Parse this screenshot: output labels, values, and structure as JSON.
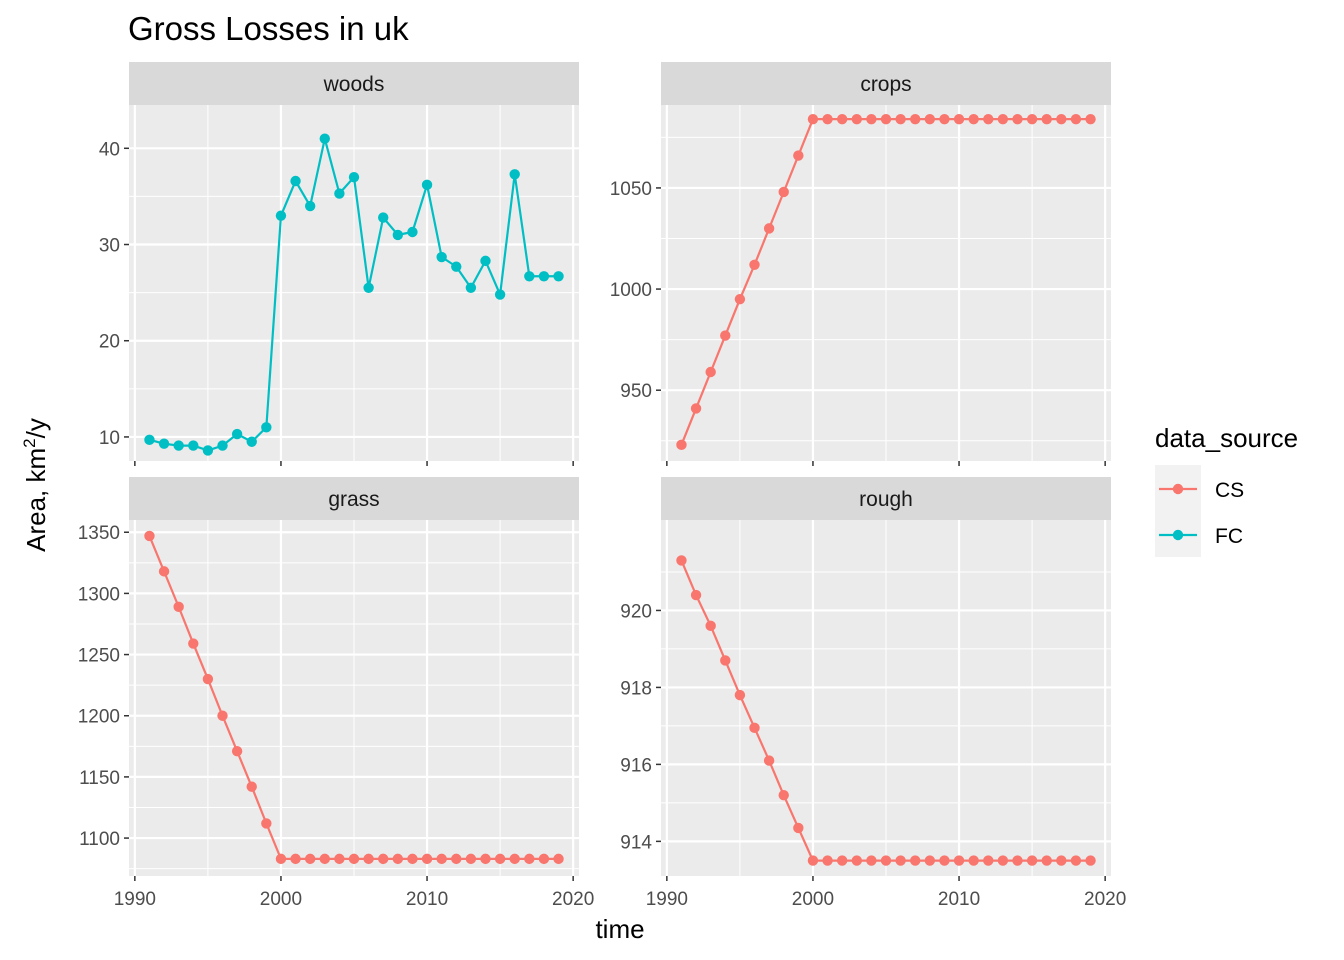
{
  "chart_data": {
    "type": "line",
    "title": "Gross Losses in uk",
    "xlabel": "time",
    "ylabel_prefix": "Area,  km",
    "ylabel_superscript": "2",
    "ylabel_suffix": "/y",
    "x": [
      1991,
      1992,
      1993,
      1994,
      1995,
      1996,
      1997,
      1998,
      1999,
      2000,
      2001,
      2002,
      2003,
      2004,
      2005,
      2006,
      2007,
      2008,
      2009,
      2010,
      2011,
      2012,
      2013,
      2014,
      2015,
      2016,
      2017,
      2018,
      2019
    ],
    "x_ticks": [
      1990,
      2000,
      2010,
      2020
    ],
    "legend": {
      "title": "data_source",
      "position": "right",
      "entries": [
        {
          "name": "CS",
          "color": "#F8766D"
        },
        {
          "name": "FC",
          "color": "#00BFC4"
        }
      ]
    },
    "facets": [
      {
        "label": "woods",
        "series": "FC",
        "ylim": [
          7.5,
          44.5
        ],
        "yticks": [
          10,
          20,
          30,
          40
        ],
        "values": [
          9.7,
          9.3,
          9.1,
          9.1,
          8.6,
          9.1,
          10.3,
          9.5,
          11.0,
          33.0,
          36.6,
          34.0,
          41.0,
          35.3,
          37.0,
          25.5,
          32.8,
          31.0,
          31.3,
          36.2,
          28.7,
          27.7,
          25.5,
          28.3,
          24.8,
          37.3,
          26.7,
          26.7,
          26.7
        ]
      },
      {
        "label": "crops",
        "series": "CS",
        "ylim": [
          915,
          1091
        ],
        "yticks": [
          950,
          1000,
          1050
        ],
        "values": [
          923,
          941,
          959,
          977,
          995,
          1012,
          1030,
          1048,
          1066,
          1084,
          1084,
          1084,
          1084,
          1084,
          1084,
          1084,
          1084,
          1084,
          1084,
          1084,
          1084,
          1084,
          1084,
          1084,
          1084,
          1084,
          1084,
          1084,
          1084
        ]
      },
      {
        "label": "grass",
        "series": "CS",
        "ylim": [
          1069,
          1360
        ],
        "yticks": [
          1100,
          1150,
          1200,
          1250,
          1300,
          1350
        ],
        "values": [
          1347,
          1318,
          1289,
          1259,
          1230,
          1200,
          1171,
          1142,
          1112,
          1083,
          1083,
          1083,
          1083,
          1083,
          1083,
          1083,
          1083,
          1083,
          1083,
          1083,
          1083,
          1083,
          1083,
          1083,
          1083,
          1083,
          1083,
          1083,
          1083
        ]
      },
      {
        "label": "rough",
        "series": "CS",
        "ylim": [
          913.1,
          922.35
        ],
        "yticks": [
          914,
          916,
          918,
          920
        ],
        "values": [
          921.3,
          920.4,
          919.6,
          918.7,
          917.8,
          916.95,
          916.1,
          915.2,
          914.35,
          913.5,
          913.5,
          913.5,
          913.5,
          913.5,
          913.5,
          913.5,
          913.5,
          913.5,
          913.5,
          913.5,
          913.5,
          913.5,
          913.5,
          913.5,
          913.5,
          913.5,
          913.5,
          913.5,
          913.5
        ]
      }
    ]
  }
}
